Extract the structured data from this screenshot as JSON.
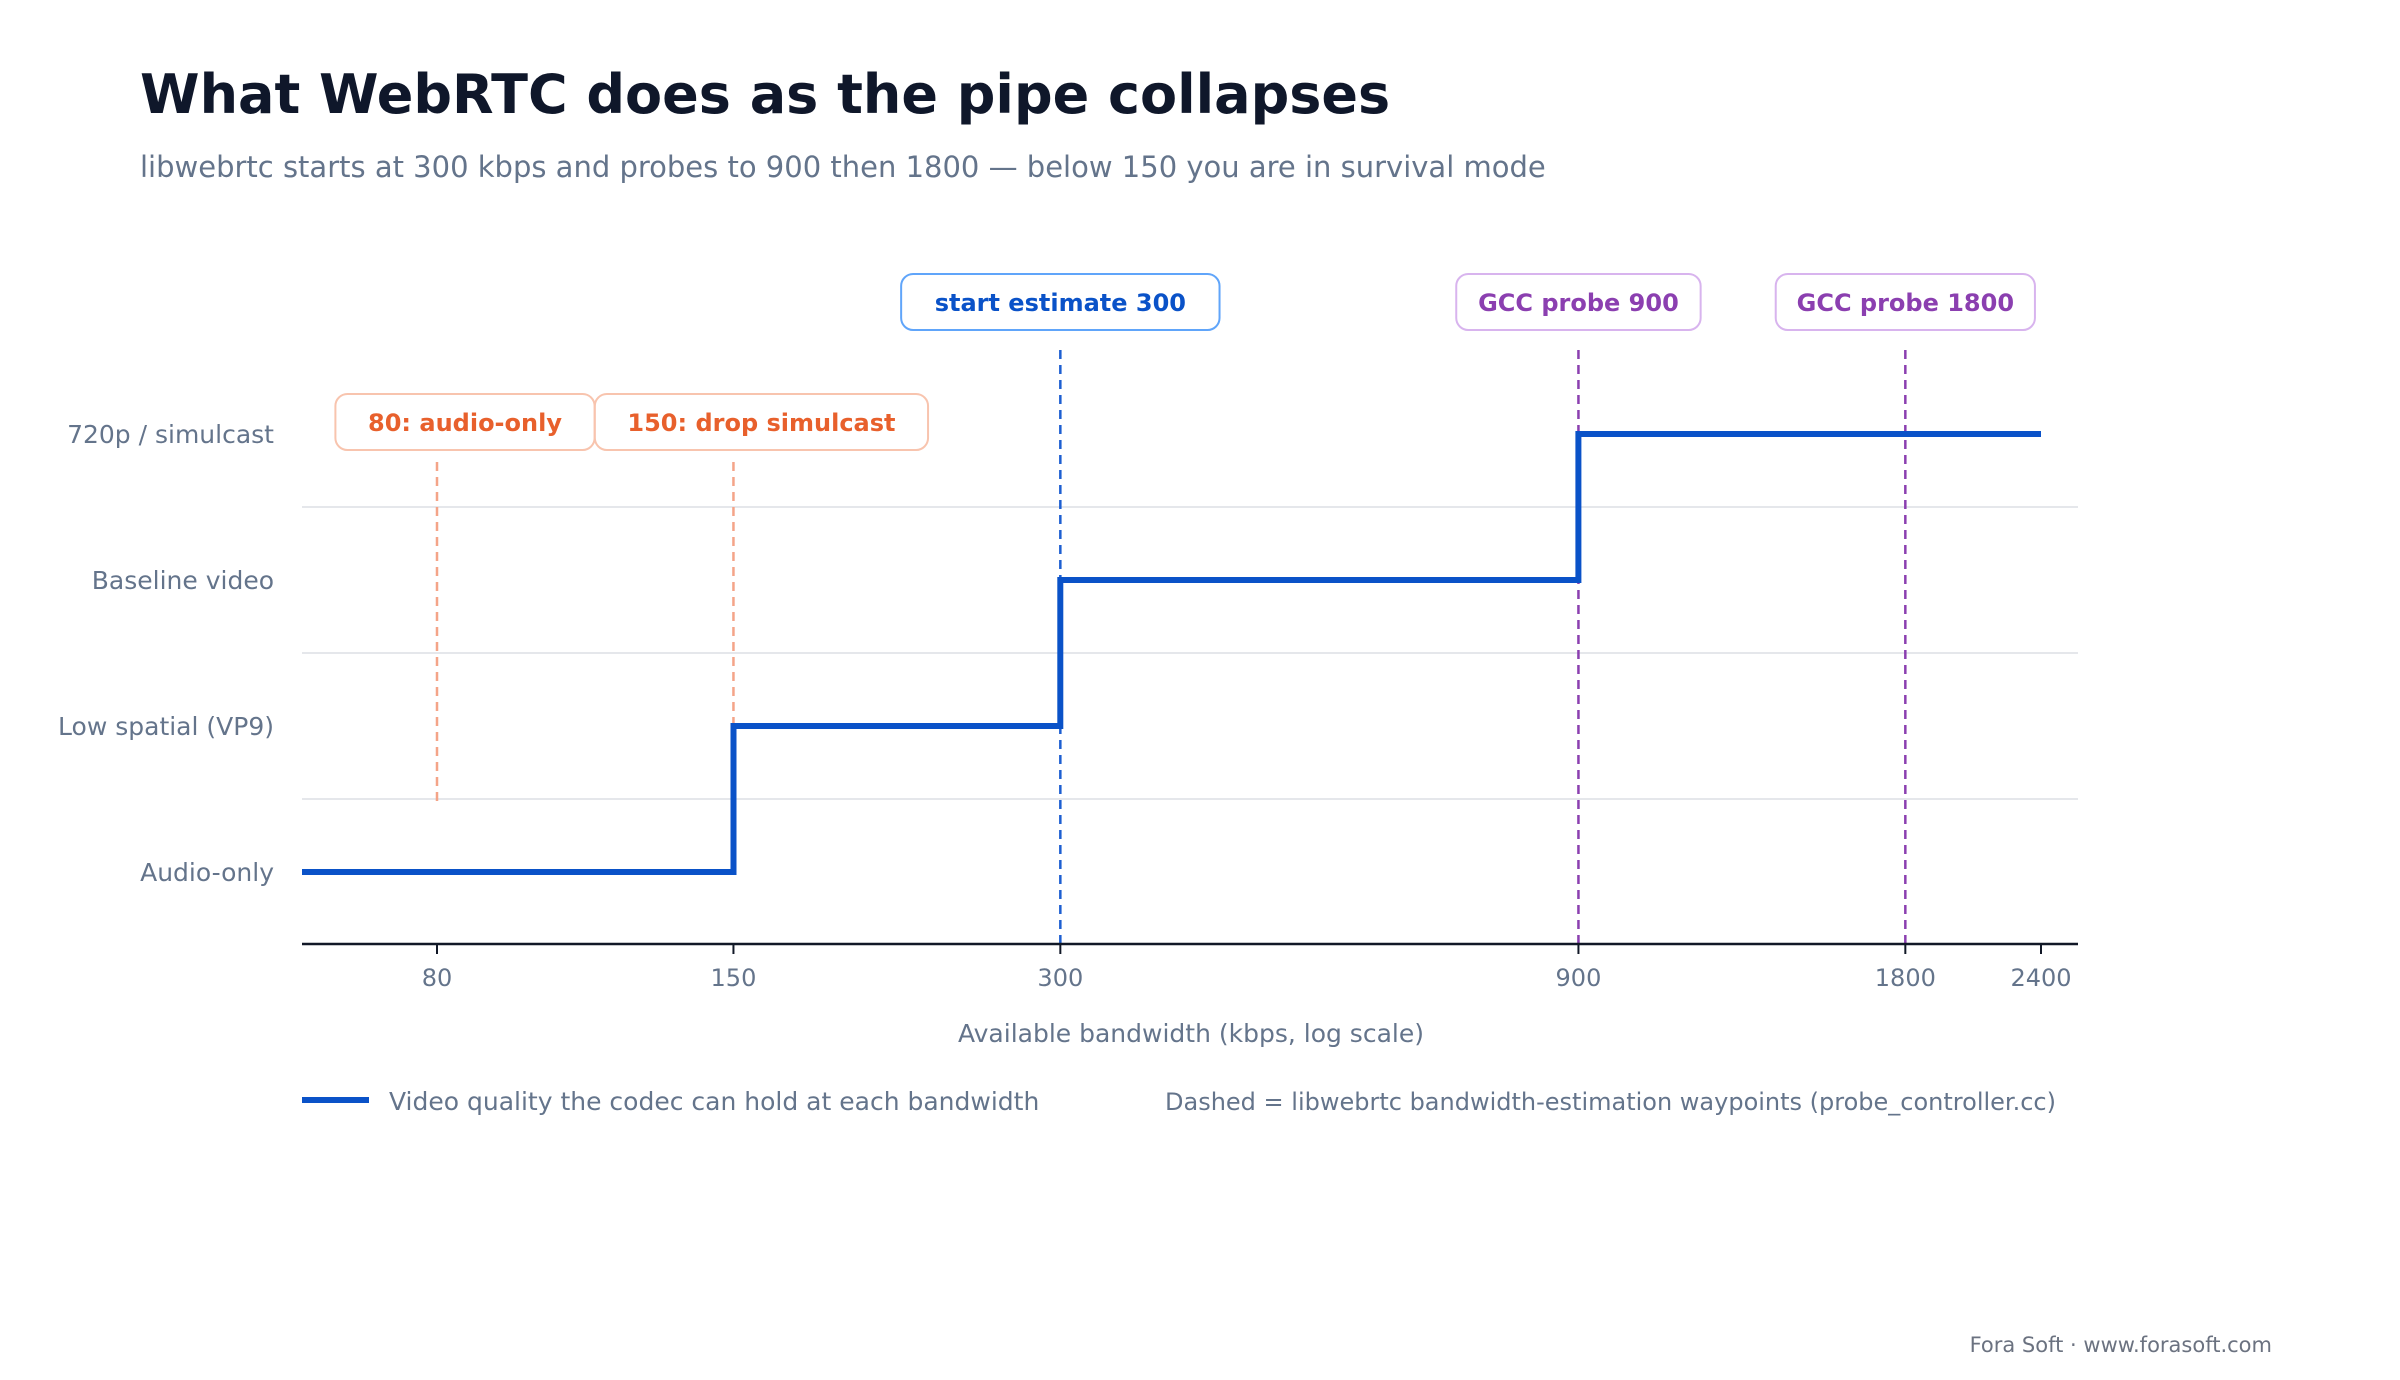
{
  "chart_data": {
    "type": "line",
    "step": true,
    "title": "What WebRTC does as the pipe collapses",
    "subtitle": "libwebrtc starts at 300 kbps and probes to 900 then 1800 — below 150 you are in survival mode",
    "xlabel": "Available bandwidth (kbps, log scale)",
    "ylabel": "",
    "x_scale": "log",
    "xlim": [
      50,
      2600
    ],
    "x_ticks": [
      80,
      150,
      300,
      900,
      1800,
      2400
    ],
    "x_tick_labels": [
      "80",
      "150",
      "300",
      "900",
      "1800",
      "2400"
    ],
    "y_categories": [
      "Audio-only",
      "Low spatial (VP9)",
      "Baseline video",
      "720p / simulcast"
    ],
    "grid": "horizontal",
    "series": [
      {
        "name": "Video quality the codec can hold at each bandwidth",
        "color": "#0a52c8",
        "x": [
          50,
          150,
          150,
          300,
          300,
          900,
          900,
          2400
        ],
        "y": [
          "Audio-only",
          "Audio-only",
          "Low spatial (VP9)",
          "Low spatial (VP9)",
          "Baseline video",
          "Baseline video",
          "720p / simulcast",
          "720p / simulcast"
        ]
      }
    ],
    "annotations": [
      {
        "x": 80,
        "label": "80: audio-only",
        "color": "#e8602c",
        "line_color": "#f4a488",
        "border_color": "#f8c4ae",
        "row": "low",
        "line_extent": "partial"
      },
      {
        "x": 150,
        "label": "150: drop simulcast",
        "color": "#e8602c",
        "line_color": "#f4a488",
        "border_color": "#f8c4ae",
        "row": "low",
        "line_extent": "partial"
      },
      {
        "x": 300,
        "label": "start estimate 300",
        "color": "#0a52c8",
        "line_color": "#1d5fd1",
        "border_color": "#60a5fa",
        "row": "high",
        "line_extent": "full"
      },
      {
        "x": 900,
        "label": "GCC probe 900",
        "color": "#8b3fb0",
        "line_color": "#8b3fb0",
        "border_color": "#d8b4ee",
        "row": "high",
        "line_extent": "full"
      },
      {
        "x": 1800,
        "label": "GCC probe 1800",
        "color": "#8b3fb0",
        "line_color": "#8b3fb0",
        "border_color": "#d8b4ee",
        "row": "high",
        "line_extent": "full"
      }
    ],
    "legend": {
      "placement": "bottom-left",
      "series_label": "Video quality the codec can hold at each bandwidth",
      "note": "Dashed = libwebrtc bandwidth-estimation waypoints (probe_controller.cc)"
    }
  },
  "footer": "Fora Soft · www.forasoft.com",
  "colors": {
    "title": "#0f172a",
    "muted": "#64748b",
    "grid": "#e5e7eb",
    "axis": "#111827",
    "series": "#0a52c8"
  }
}
